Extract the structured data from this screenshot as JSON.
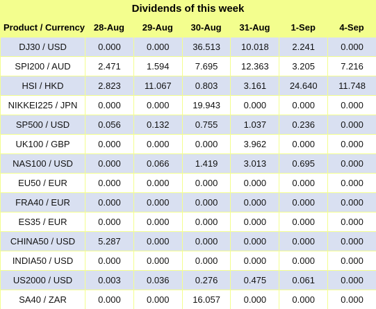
{
  "title": "Dividends of this week",
  "columns": [
    "Product / Currency",
    "28-Aug",
    "29-Aug",
    "30-Aug",
    "31-Aug",
    "1-Sep",
    "4-Sep"
  ],
  "rows": [
    [
      "DJ30 / USD",
      "0.000",
      "0.000",
      "36.513",
      "10.018",
      "2.241",
      "0.000"
    ],
    [
      "SPI200 / AUD",
      "2.471",
      "1.594",
      "7.695",
      "12.363",
      "3.205",
      "7.216"
    ],
    [
      "HSI / HKD",
      "2.823",
      "11.067",
      "0.803",
      "3.161",
      "24.640",
      "11.748"
    ],
    [
      "NIKKEI225 / JPN",
      "0.000",
      "0.000",
      "19.943",
      "0.000",
      "0.000",
      "0.000"
    ],
    [
      "SP500 / USD",
      "0.056",
      "0.132",
      "0.755",
      "1.037",
      "0.236",
      "0.000"
    ],
    [
      "UK100 / GBP",
      "0.000",
      "0.000",
      "0.000",
      "3.962",
      "0.000",
      "0.000"
    ],
    [
      "NAS100 / USD",
      "0.000",
      "0.066",
      "1.419",
      "3.013",
      "0.695",
      "0.000"
    ],
    [
      "EU50 / EUR",
      "0.000",
      "0.000",
      "0.000",
      "0.000",
      "0.000",
      "0.000"
    ],
    [
      "FRA40 / EUR",
      "0.000",
      "0.000",
      "0.000",
      "0.000",
      "0.000",
      "0.000"
    ],
    [
      "ES35 / EUR",
      "0.000",
      "0.000",
      "0.000",
      "0.000",
      "0.000",
      "0.000"
    ],
    [
      "CHINA50 / USD",
      "5.287",
      "0.000",
      "0.000",
      "0.000",
      "0.000",
      "0.000"
    ],
    [
      "INDIA50 / USD",
      "0.000",
      "0.000",
      "0.000",
      "0.000",
      "0.000",
      "0.000"
    ],
    [
      "US2000 / USD",
      "0.003",
      "0.036",
      "0.276",
      "0.475",
      "0.061",
      "0.000"
    ],
    [
      "SA40 / ZAR",
      "0.000",
      "0.000",
      "16.057",
      "0.000",
      "0.000",
      "0.000"
    ]
  ],
  "colors": {
    "background": "#f3fe8e",
    "row_shaded": "#d9e0f1",
    "row_plain": "#ffffff"
  }
}
